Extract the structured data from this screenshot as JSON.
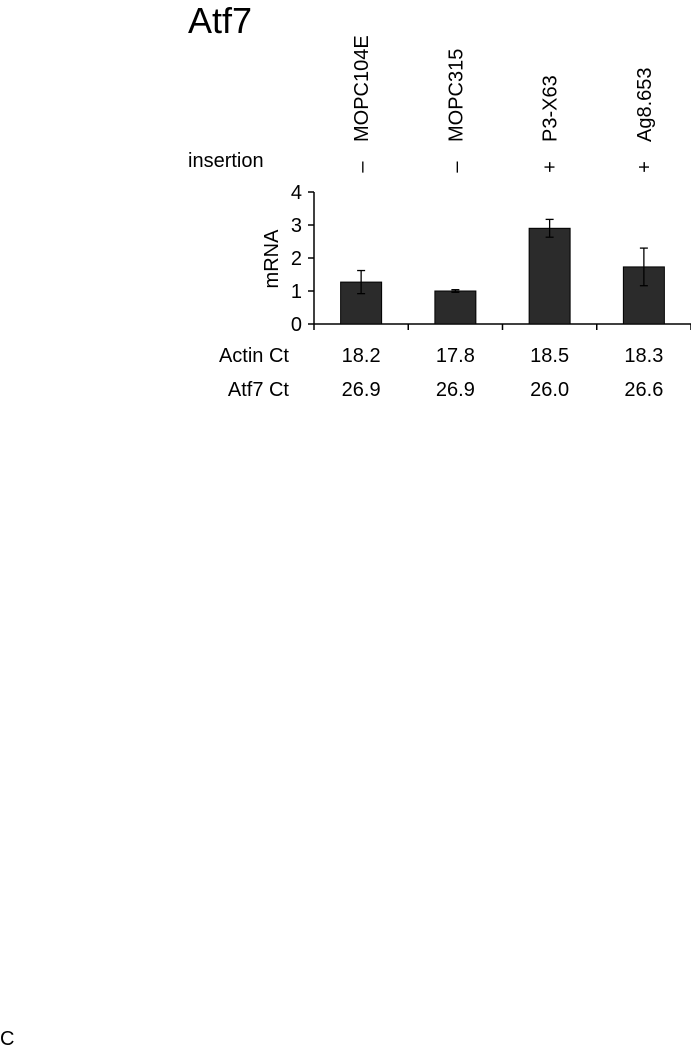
{
  "chart_data": {
    "type": "bar",
    "title": "Atf7",
    "ylabel": "mRNA",
    "xlabel": "",
    "ylim": [
      0,
      4
    ],
    "yticks": [
      0,
      1,
      2,
      3,
      4
    ],
    "grid": false,
    "bar_color": "#2b2b2b",
    "categories": [
      "MOPC104E",
      "MOPC315",
      "P3-X63",
      "Ag8.653"
    ],
    "values": [
      1.27,
      1.0,
      2.9,
      1.73
    ],
    "errors": [
      0.35,
      0.04,
      0.27,
      0.57
    ],
    "insertion": {
      "label": "insertion",
      "values": [
        "–",
        "–",
        "+",
        "+"
      ]
    },
    "table_rows": [
      {
        "label": "Actin Ct",
        "values": [
          "18.2",
          "17.8",
          "18.5",
          "18.3"
        ]
      },
      {
        "label": "Atf7 Ct",
        "values": [
          "26.9",
          "26.9",
          "26.0",
          "26.6"
        ]
      }
    ]
  },
  "panel_label": "C"
}
